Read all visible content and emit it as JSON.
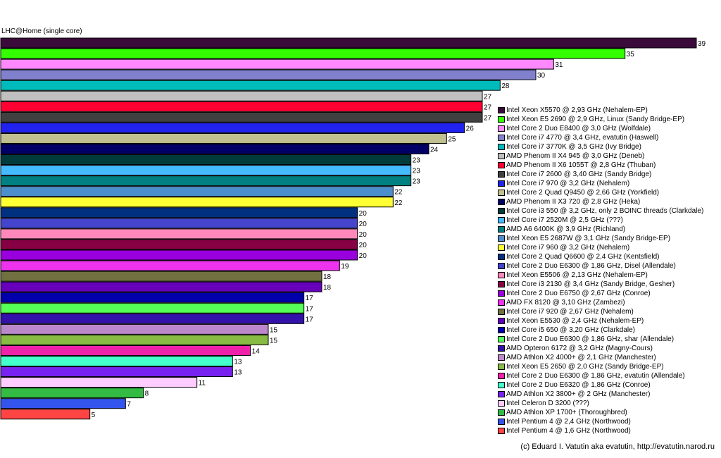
{
  "chart_data": {
    "type": "bar",
    "orientation": "horizontal",
    "title": "LHC@Home (single core)",
    "xlim": [
      0,
      39
    ],
    "grid": false,
    "legend": "right",
    "bars": [
      {
        "name": "Intel Xeon X5570 @ 2,93 GHz (Nehalem-EP)",
        "value": 39,
        "color": "#3a0a3a"
      },
      {
        "name": "Intel Xeon E5 2690 @ 2,9 GHz, Linux (Sandy Bridge-EP)",
        "value": 35,
        "color": "#33ff00"
      },
      {
        "name": "Intel Core 2 Duo E8400 @ 3,0 GHz (Wolfdale)",
        "value": 31,
        "color": "#ff88ff"
      },
      {
        "name": "Intel Core i7 4770 @ 3,4 GHz, evatutin (Haswell)",
        "value": 30,
        "color": "#8080cc"
      },
      {
        "name": "Intel Core i7 3770K @ 3,5 GHz (Ivy Bridge)",
        "value": 28,
        "color": "#00bbbb"
      },
      {
        "name": "AMD Phenom II X4 945 @ 3,0 GHz (Deneb)",
        "value": 27,
        "color": "#c0c0c0"
      },
      {
        "name": "AMD Phenom II X6 1055T @ 2,8 GHz (Thuban)",
        "value": 27,
        "color": "#ff0033"
      },
      {
        "name": "Intel Core i7 2600 @ 3,40 GHz (Sandy Bridge)",
        "value": 27,
        "color": "#404040"
      },
      {
        "name": "Intel Core i7 970 @ 3,2 GHz (Nehalem)",
        "value": 26,
        "color": "#2222ee"
      },
      {
        "name": "Intel Core 2 Quad Q9450 @ 2,66 GHz (Yorkfield)",
        "value": 25,
        "color": "#c0c090"
      },
      {
        "name": "AMD Phenom II X3 720 @ 2,8 GHz (Heka)",
        "value": 24,
        "color": "#000066"
      },
      {
        "name": "Intel Core i3 550 @ 3,2 GHz, only 2 BOINC threads (Clarkdale)",
        "value": 23,
        "color": "#003c3c"
      },
      {
        "name": "Intel Core i7 2520M @ 2,5 GHz (???)",
        "value": 23,
        "color": "#44bbff"
      },
      {
        "name": "AMD A6 6400K @ 3,9 GHz (Richland)",
        "value": 23,
        "color": "#008080"
      },
      {
        "name": "Intel Xeon E5 2687W @ 3,1 GHz (Sandy Bridge-EP)",
        "value": 22,
        "color": "#4d8fcc"
      },
      {
        "name": "Intel Core i7 960 @ 3,2 GHz (Nehalem)",
        "value": 22,
        "color": "#ffff33"
      },
      {
        "name": "Intel Core 2 Quad Q6600 @ 2,4 GHz (Kentsfield)",
        "value": 20,
        "color": "#003080"
      },
      {
        "name": "Intel Core 2 Duo E6300 @ 1,86 GHz, Disel (Allendale)",
        "value": 20,
        "color": "#4444cc"
      },
      {
        "name": "Intel Xeon E5506 @ 2,13 GHz (Nehalem-EP)",
        "value": 20,
        "color": "#ff88bb"
      },
      {
        "name": "Intel Core i3 2130 @ 3,4 GHz (Sandy Bridge, Gesher)",
        "value": 20,
        "color": "#880044"
      },
      {
        "name": "Intel Core 2 Duo E6750 @ 2,67 GHz (Conroe)",
        "value": 20,
        "color": "#9900dd"
      },
      {
        "name": "AMD FX 8120 @ 3,10 GHz (Zambezi)",
        "value": 19,
        "color": "#ee33ee"
      },
      {
        "name": "Intel Core i7 920 @ 2,67 GHz (Nehalem)",
        "value": 18,
        "color": "#707040"
      },
      {
        "name": "Intel Xeon E5530 @ 2,4 GHz (Nehalem-EP)",
        "value": 18,
        "color": "#6600bb"
      },
      {
        "name": "Intel Core i5 650 @ 3,20 GHz (Clarkdale)",
        "value": 17,
        "color": "#0000aa"
      },
      {
        "name": "Intel Core 2 Duo E6300 @ 1,86 GHz, shar (Allendale)",
        "value": 17,
        "color": "#55ff55"
      },
      {
        "name": "AMD Opteron 6172 @ 3,2 GHz (Magny-Cours)",
        "value": 17,
        "color": "#3311aa"
      },
      {
        "name": "AMD Athlon X2 4000+ @ 2,1 GHz (Manchester)",
        "value": 15,
        "color": "#bb88cc"
      },
      {
        "name": "Intel Xeon E5 2650 @ 2,0 GHz (Sandy Bridge-EP)",
        "value": 15,
        "color": "#88bb44"
      },
      {
        "name": "Intel Core 2 Duo E6300 @ 1,86 GHz, evatutin (Allendale)",
        "value": 14,
        "color": "#ee22aa"
      },
      {
        "name": "Intel Core 2 Duo E6320 @ 1,86 GHz (Conroe)",
        "value": 13,
        "color": "#44ffcc"
      },
      {
        "name": "AMD Athlon X2 3800+ @ 2 GHz (Manchester)",
        "value": 13,
        "color": "#7722ee"
      },
      {
        "name": "Intel Celeron D 3200 (???)",
        "value": 11,
        "color": "#ffccff"
      },
      {
        "name": "AMD Athlon XP 1700+ (Thoroughbred)",
        "value": 8,
        "color": "#33bb44"
      },
      {
        "name": "Intel Pentium 4 @ 2,4 GHz (Northwood)",
        "value": 7,
        "color": "#3355ee"
      },
      {
        "name": "Intel Pentium 4 @ 1,6 GHz (Northwood)",
        "value": 5,
        "color": "#ff4444"
      }
    ]
  },
  "footer": "(c) Eduard I. Vatutin aka evatutin, http://evatutin.narod.ru"
}
